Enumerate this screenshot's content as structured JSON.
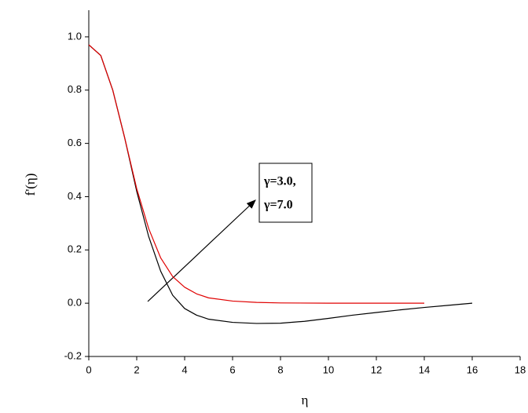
{
  "chart_data": {
    "type": "line",
    "xlabel": "η",
    "ylabel": "f'(η)",
    "xlim": [
      0,
      18
    ],
    "xticks": [
      0,
      2,
      4,
      6,
      8,
      10,
      12,
      14,
      16,
      18
    ],
    "ylim": [
      -0.2,
      1.1
    ],
    "yticks": [
      -0.2,
      {
        "value": 0,
        "label": "0.0"
      },
      0.2,
      0.4,
      0.6,
      0.8,
      {
        "value": 1,
        "label": "1.0"
      }
    ],
    "annotations": [
      "γ=3.0,",
      "γ=7.0"
    ],
    "series": [
      {
        "color": "#000000",
        "x": [
          0,
          0.5,
          1,
          1.5,
          2,
          2.5,
          3,
          3.5,
          4,
          4.5,
          5,
          6,
          7,
          8,
          9,
          10,
          11,
          12,
          13,
          14,
          15,
          16
        ],
        "values": [
          0.97,
          0.93,
          0.8,
          0.62,
          0.42,
          0.25,
          0.12,
          0.03,
          -0.02,
          -0.045,
          -0.06,
          -0.072,
          -0.076,
          -0.075,
          -0.068,
          -0.057,
          -0.045,
          -0.035,
          -0.025,
          -0.016,
          -0.008,
          0
        ]
      },
      {
        "color": "#e00000",
        "x": [
          0,
          0.5,
          1,
          1.5,
          2,
          2.5,
          3,
          3.5,
          4,
          4.5,
          5,
          6,
          7,
          8,
          10,
          12,
          14
        ],
        "values": [
          0.97,
          0.93,
          0.8,
          0.62,
          0.43,
          0.28,
          0.17,
          0.1,
          0.06,
          0.035,
          0.02,
          0.008,
          0.003,
          0.001,
          0,
          0,
          0
        ]
      }
    ]
  }
}
